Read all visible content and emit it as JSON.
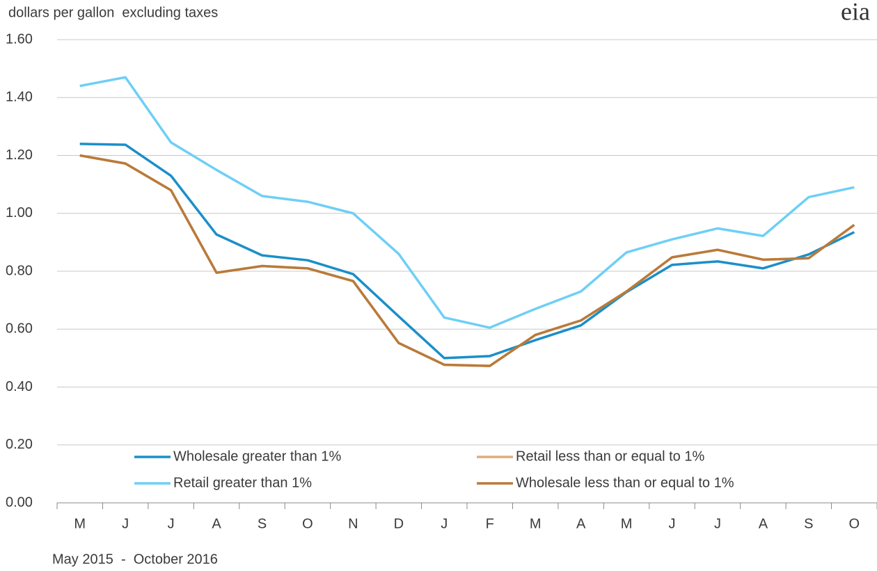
{
  "chart_data": {
    "type": "line",
    "y_label": "dollars per gallon  excluding taxes",
    "note": "May 2015  -  October 2016",
    "logo": "eia",
    "categories": [
      "M",
      "J",
      "J",
      "A",
      "S",
      "O",
      "N",
      "D",
      "J",
      "F",
      "M",
      "A",
      "M",
      "J",
      "J",
      "A",
      "S",
      "O"
    ],
    "series": [
      {
        "name": "Wholesale greater than 1%",
        "color": "#1a8fc9",
        "values": [
          1.24,
          1.237,
          1.13,
          0.927,
          0.855,
          0.838,
          0.79,
          0.644,
          0.5,
          0.507,
          0.562,
          0.613,
          0.728,
          0.822,
          0.834,
          0.81,
          0.858,
          0.935
        ]
      },
      {
        "name": "Retail less than or equal to 1%",
        "color": "#dcae7a",
        "values": [
          1.2,
          1.172,
          1.08,
          0.795,
          0.818,
          0.81,
          0.766,
          0.552,
          0.477,
          0.473,
          0.58,
          0.63,
          0.73,
          0.848,
          0.874,
          0.84,
          0.845,
          0.96
        ]
      },
      {
        "name": "Retail greater than 1%",
        "color": "#6ecff6",
        "values": [
          1.44,
          1.47,
          1.245,
          1.15,
          1.06,
          1.04,
          1.0,
          0.86,
          0.64,
          0.605,
          0.67,
          0.73,
          0.865,
          0.91,
          0.948,
          0.922,
          1.056,
          1.09
        ]
      },
      {
        "name": "Wholesale less than or equal to 1%",
        "color": "#b97a3a",
        "values": [
          1.2,
          1.172,
          1.08,
          0.795,
          0.818,
          0.81,
          0.766,
          0.552,
          0.477,
          0.473,
          0.58,
          0.63,
          0.73,
          0.848,
          0.874,
          0.84,
          0.845,
          0.96
        ]
      }
    ],
    "ylim": [
      0,
      1.6
    ],
    "yticks": [
      {
        "value": 0,
        "label": "0.00"
      },
      {
        "value": 0.2,
        "label": "0.20"
      },
      {
        "value": 0.4,
        "label": "0.40"
      },
      {
        "value": 0.6,
        "label": "0.60"
      },
      {
        "value": 0.8,
        "label": "0.80"
      },
      {
        "value": 1.0,
        "label": "1.00"
      },
      {
        "value": 1.2,
        "label": "1.20"
      },
      {
        "value": 1.4,
        "label": "1.40"
      },
      {
        "value": 1.6,
        "label": "1.60"
      }
    ],
    "grid": true
  }
}
